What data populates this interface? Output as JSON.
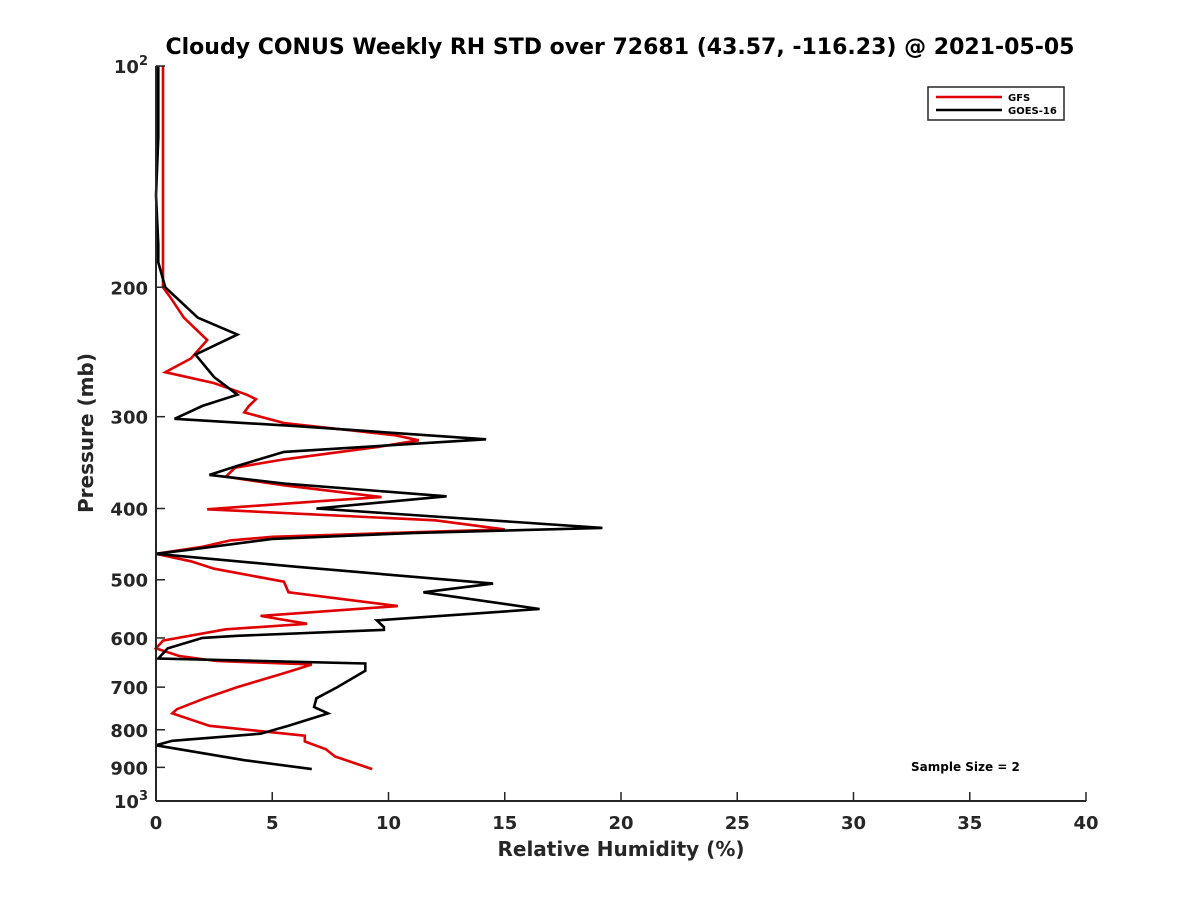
{
  "chart_data": {
    "type": "line",
    "title": "Cloudy CONUS Weekly RH STD over 72681 (43.57, -116.23) @ 2021-05-05",
    "xlabel": "Relative Humidity (%)",
    "ylabel": "Pressure (mb)",
    "xlim": [
      0,
      40
    ],
    "ylim": [
      100,
      1000
    ],
    "yscale": "log",
    "y_reversed": true,
    "x_ticks": [
      "0",
      "5",
      "10",
      "15",
      "20",
      "25",
      "30",
      "35",
      "40"
    ],
    "y_ticks": [
      {
        "value": 100,
        "base": "10",
        "exp": "2"
      },
      {
        "value": 200,
        "label": "200"
      },
      {
        "value": 300,
        "label": "300"
      },
      {
        "value": 400,
        "label": "400"
      },
      {
        "value": 500,
        "label": "500"
      },
      {
        "value": 600,
        "label": "600"
      },
      {
        "value": 700,
        "label": "700"
      },
      {
        "value": 800,
        "label": "800"
      },
      {
        "value": 900,
        "label": "900"
      },
      {
        "value": 1000,
        "base": "10",
        "exp": "3"
      }
    ],
    "legend_position": "top-right",
    "grid": false,
    "annotation": "Sample Size = 2",
    "series": [
      {
        "name": "GFS",
        "color": "#e00000",
        "points": [
          [
            0.3,
            100
          ],
          [
            0.3,
            125
          ],
          [
            0.3,
            150
          ],
          [
            0.3,
            175
          ],
          [
            0.3,
            200
          ],
          [
            0.6,
            206
          ],
          [
            1.2,
            220
          ],
          [
            2.2,
            236
          ],
          [
            1.5,
            250
          ],
          [
            0.4,
            261
          ],
          [
            2.5,
            270
          ],
          [
            3.9,
            280
          ],
          [
            4.3,
            284
          ],
          [
            4.0,
            290
          ],
          [
            3.8,
            296
          ],
          [
            5.5,
            306
          ],
          [
            10.3,
            318
          ],
          [
            11.3,
            323
          ],
          [
            9.5,
            330
          ],
          [
            5.5,
            343
          ],
          [
            3.4,
            352
          ],
          [
            3.0,
            362
          ],
          [
            5.5,
            372
          ],
          [
            9.7,
            386
          ],
          [
            7.5,
            390
          ],
          [
            2.2,
            401
          ],
          [
            12.0,
            415
          ],
          [
            15.0,
            427
          ],
          [
            10.0,
            432
          ],
          [
            5.0,
            437
          ],
          [
            3.2,
            442
          ],
          [
            2.0,
            451
          ],
          [
            0.0,
            461
          ],
          [
            1.5,
            472
          ],
          [
            2.5,
            483
          ],
          [
            5.5,
            503
          ],
          [
            5.7,
            520
          ],
          [
            10.4,
            543
          ],
          [
            4.5,
            560
          ],
          [
            6.5,
            574
          ],
          [
            3.0,
            584
          ],
          [
            0.3,
            605
          ],
          [
            0.2,
            610
          ],
          [
            0.0,
            620
          ],
          [
            1.0,
            635
          ],
          [
            2.6,
            645
          ],
          [
            6.7,
            652
          ],
          [
            5.5,
            670
          ],
          [
            3.5,
            700
          ],
          [
            2.1,
            725
          ],
          [
            0.9,
            750
          ],
          [
            0.7,
            760
          ],
          [
            2.3,
            790
          ],
          [
            6.4,
            815
          ],
          [
            6.4,
            830
          ],
          [
            7.3,
            850
          ],
          [
            7.7,
            870
          ],
          [
            9.3,
            905
          ]
        ]
      },
      {
        "name": "GOES-16",
        "color": "#000000",
        "points": [
          [
            0.1,
            100
          ],
          [
            0.1,
            125
          ],
          [
            0.0,
            150
          ],
          [
            0.1,
            175
          ],
          [
            0.1,
            185
          ],
          [
            0.4,
            200
          ],
          [
            1.8,
            220
          ],
          [
            3.5,
            232
          ],
          [
            1.7,
            247
          ],
          [
            2.5,
            265
          ],
          [
            3.5,
            280
          ],
          [
            2.0,
            290
          ],
          [
            0.8,
            302
          ],
          [
            6.0,
            309
          ],
          [
            14.2,
            322
          ],
          [
            5.5,
            335
          ],
          [
            3.5,
            350
          ],
          [
            2.3,
            360
          ],
          [
            5.5,
            370
          ],
          [
            12.5,
            385
          ],
          [
            6.9,
            400
          ],
          [
            19.2,
            425
          ],
          [
            11.0,
            432
          ],
          [
            5.0,
            440
          ],
          [
            1.5,
            455
          ],
          [
            0.0,
            461
          ],
          [
            6.0,
            480
          ],
          [
            14.5,
            506
          ],
          [
            11.5,
            520
          ],
          [
            16.5,
            548
          ],
          [
            9.5,
            568
          ],
          [
            9.8,
            580
          ],
          [
            9.8,
            585
          ],
          [
            3.5,
            596
          ],
          [
            2.0,
            600
          ],
          [
            0.5,
            620
          ],
          [
            0.1,
            640
          ],
          [
            9.0,
            650
          ],
          [
            9.0,
            665
          ],
          [
            7.8,
            700
          ],
          [
            6.9,
            725
          ],
          [
            6.8,
            745
          ],
          [
            7.4,
            760
          ],
          [
            5.7,
            790
          ],
          [
            4.5,
            810
          ],
          [
            0.7,
            828
          ],
          [
            0.0,
            840
          ],
          [
            3.8,
            880
          ],
          [
            6.7,
            905
          ]
        ]
      }
    ]
  }
}
